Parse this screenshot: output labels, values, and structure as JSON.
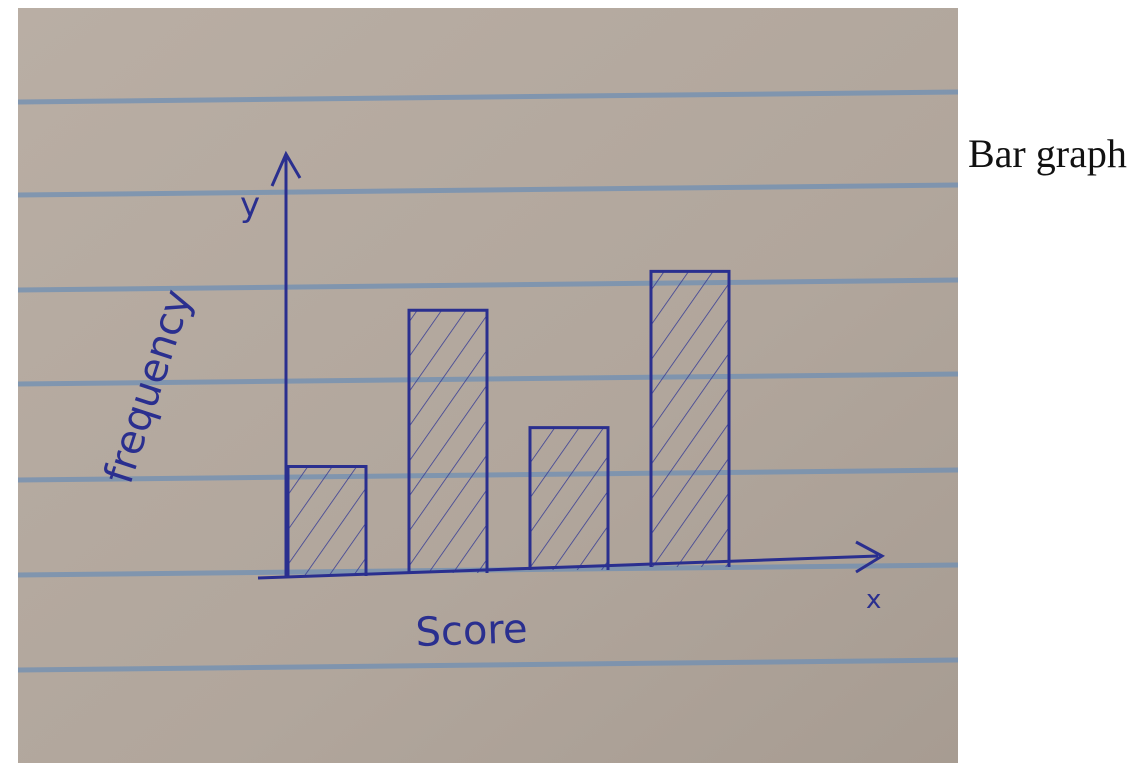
{
  "caption": "Bar graph",
  "colors": {
    "paper": "#b3a89e",
    "rule_line": "#6f8fb4",
    "ink": "#2a2f8f",
    "hatch": "#3a3f95"
  },
  "chart_data": {
    "type": "bar",
    "title": "",
    "xlabel": "Score",
    "ylabel": "frequency",
    "x_axis_letter": "x",
    "y_axis_letter": "y",
    "categories": [
      "",
      "",
      "",
      ""
    ],
    "values": [
      1,
      2.4,
      1.3,
      2.7
    ],
    "ylim": [
      0,
      4
    ],
    "grid": false,
    "legend": "none",
    "fill_pattern": "hatched"
  }
}
